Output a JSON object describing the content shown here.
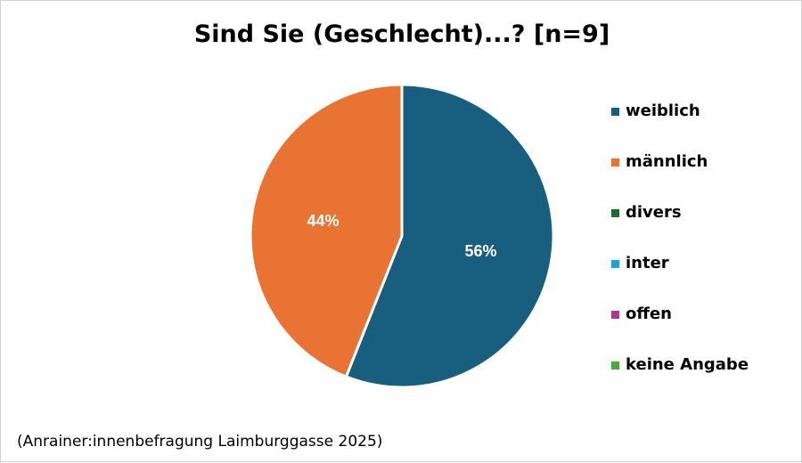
{
  "chart_data": {
    "type": "pie",
    "title": "Sind Sie (Geschlecht)...? [n=9]",
    "slices": [
      {
        "label": "weiblich",
        "value": 56,
        "color": "#175e7f",
        "data_label": "56%"
      },
      {
        "label": "männlich",
        "value": 44,
        "color": "#e97332",
        "data_label": "44%"
      },
      {
        "label": "divers",
        "value": 0,
        "color": "#1a6b2d"
      },
      {
        "label": "inter",
        "value": 0,
        "color": "#1ea3d6"
      },
      {
        "label": "offen",
        "value": 0,
        "color": "#a43a96"
      },
      {
        "label": "keine Angabe",
        "value": 0,
        "color": "#4ea93d"
      }
    ],
    "legend_position": "right"
  },
  "footer": {
    "source": "(Anrainer:innenbefragung Laimburggasse 2025)"
  }
}
